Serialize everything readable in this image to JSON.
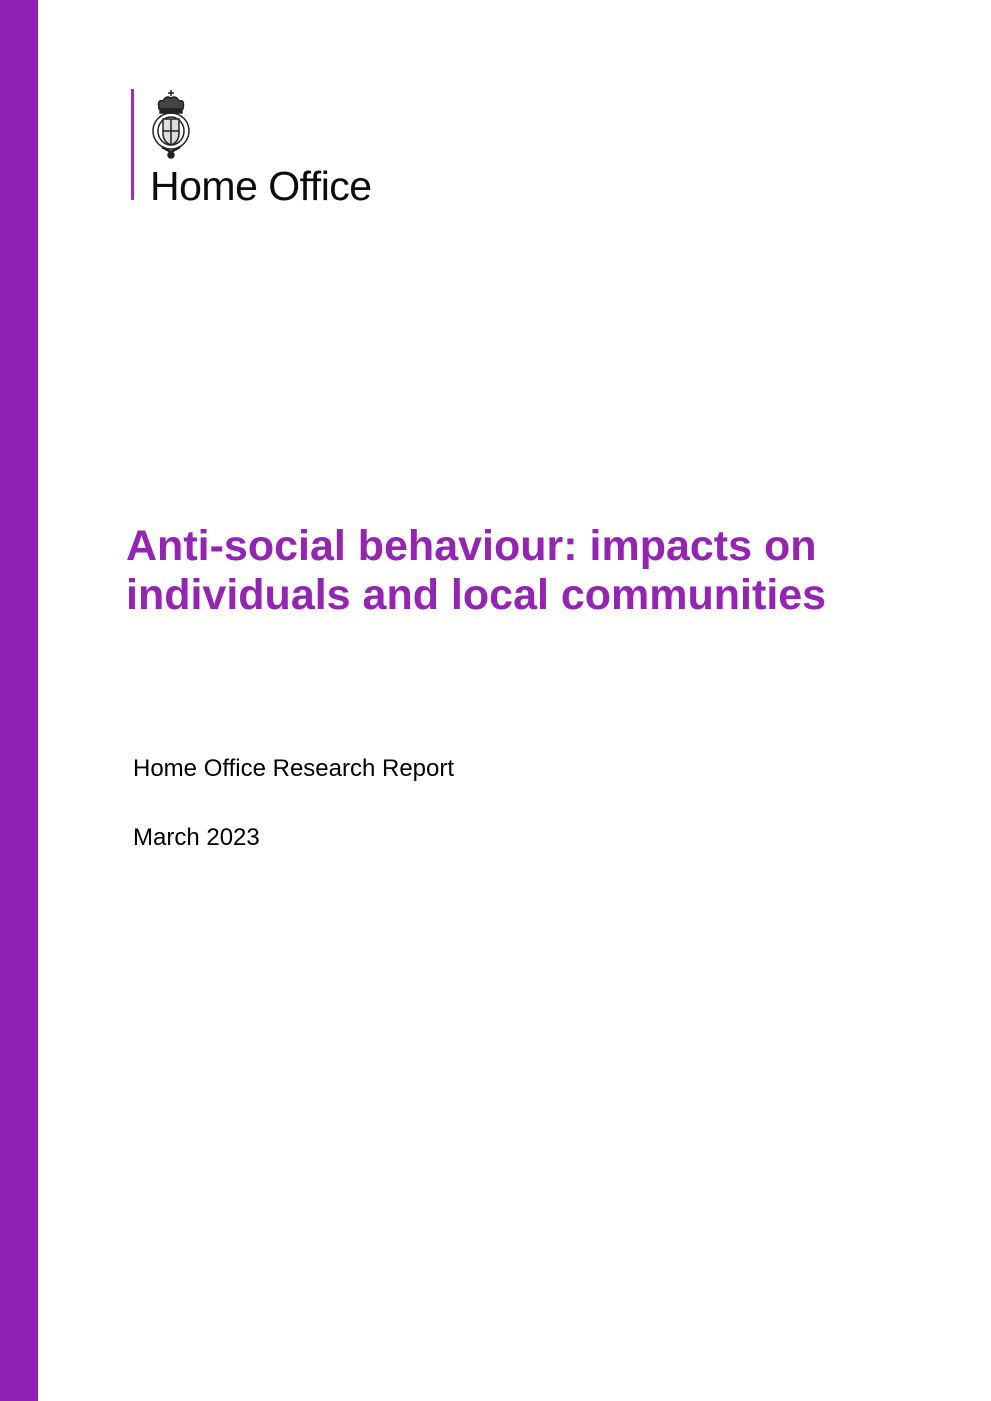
{
  "colors": {
    "sidebar": "#8f22b4",
    "title": "#9325b2",
    "logo_bar": "#9b2fc0"
  },
  "logo": {
    "text": "Home Office",
    "icon": "royal-coat-of-arms-crest"
  },
  "title_lines": [
    "Anti-social behaviour: impacts on",
    "individuals and local communities"
  ],
  "subtitle": "Home Office Research Report",
  "date": "March 2023"
}
